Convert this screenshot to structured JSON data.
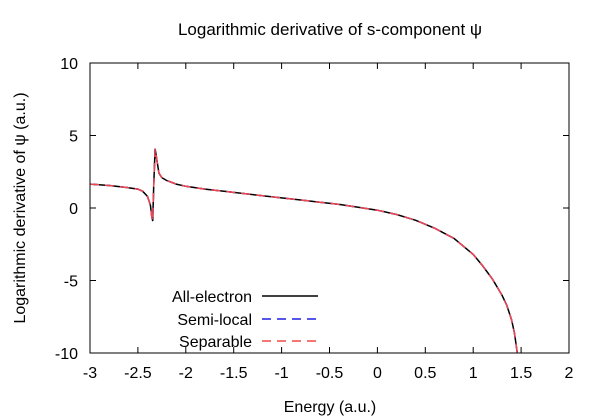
{
  "chart_data": {
    "type": "line",
    "title": "Logarithmic derivative of s-component ψ",
    "xlabel": "Energy (a.u.)",
    "ylabel": "Logarithmic derivative of ψ (a.u.)",
    "xlim": [
      -3,
      2
    ],
    "ylim": [
      -10,
      10
    ],
    "xticks": [
      -3,
      -2.5,
      -2,
      -1.5,
      -1,
      -0.5,
      0,
      0.5,
      1,
      1.5,
      2
    ],
    "xtick_labels": [
      "-3",
      "-2.5",
      "-2",
      "-1.5",
      "-1",
      "-0.5",
      "0",
      "0.5",
      "1",
      "1.5",
      "2"
    ],
    "yticks": [
      -10,
      -5,
      0,
      5,
      10
    ],
    "ytick_labels": [
      "-10",
      "-5",
      "0",
      "5",
      "10"
    ],
    "grid": false,
    "legend_position": "bottom-left",
    "series": [
      {
        "name": "All-electron",
        "color": "#000000",
        "dash": "solid",
        "x": [
          -3,
          -2.8,
          -2.6,
          -2.5,
          -2.45,
          -2.4,
          -2.37,
          -2.355,
          -2.345,
          -2.335,
          -2.32,
          -2.3,
          -2.28,
          -2.25,
          -2.2,
          -2.1,
          -2.0,
          -1.8,
          -1.6,
          -1.4,
          -1.2,
          -1.0,
          -0.8,
          -0.6,
          -0.4,
          -0.2,
          0.0,
          0.2,
          0.4,
          0.6,
          0.8,
          1.0,
          1.1,
          1.2,
          1.3,
          1.35,
          1.4,
          1.43,
          1.46
        ],
        "y": [
          1.65,
          1.55,
          1.4,
          1.3,
          1.15,
          0.8,
          0.2,
          -0.6,
          -0.9,
          1.5,
          4.1,
          3.2,
          2.4,
          2.1,
          1.9,
          1.65,
          1.5,
          1.3,
          1.15,
          1.0,
          0.85,
          0.7,
          0.55,
          0.4,
          0.25,
          0.05,
          -0.15,
          -0.45,
          -0.85,
          -1.4,
          -2.1,
          -3.2,
          -4.0,
          -4.9,
          -6.0,
          -6.7,
          -7.7,
          -8.6,
          -10.0
        ]
      },
      {
        "name": "Semi-local",
        "color": "#1f1fe0",
        "dash": "dashed",
        "x": [
          -3,
          -2.8,
          -2.6,
          -2.5,
          -2.45,
          -2.4,
          -2.37,
          -2.355,
          -2.345,
          -2.335,
          -2.32,
          -2.3,
          -2.28,
          -2.25,
          -2.2,
          -2.1,
          -2.0,
          -1.8,
          -1.6,
          -1.4,
          -1.2,
          -1.0,
          -0.8,
          -0.6,
          -0.4,
          -0.2,
          0.0,
          0.2,
          0.4,
          0.6,
          0.8,
          1.0,
          1.1,
          1.2,
          1.3,
          1.35,
          1.4,
          1.43,
          1.46
        ],
        "y": [
          1.65,
          1.55,
          1.4,
          1.3,
          1.15,
          0.8,
          0.2,
          -0.6,
          -0.9,
          1.5,
          4.1,
          3.2,
          2.4,
          2.1,
          1.9,
          1.65,
          1.5,
          1.3,
          1.15,
          1.0,
          0.85,
          0.7,
          0.55,
          0.4,
          0.25,
          0.05,
          -0.15,
          -0.45,
          -0.85,
          -1.4,
          -2.1,
          -3.2,
          -4.0,
          -4.9,
          -6.0,
          -6.7,
          -7.7,
          -8.6,
          -10.0
        ]
      },
      {
        "name": "Separable",
        "color": "#f04848",
        "dash": "dashed",
        "x": [
          -3,
          -2.8,
          -2.6,
          -2.5,
          -2.45,
          -2.4,
          -2.37,
          -2.355,
          -2.345,
          -2.335,
          -2.32,
          -2.3,
          -2.28,
          -2.25,
          -2.2,
          -2.1,
          -2.0,
          -1.8,
          -1.6,
          -1.4,
          -1.2,
          -1.0,
          -0.8,
          -0.6,
          -0.4,
          -0.2,
          0.0,
          0.2,
          0.4,
          0.6,
          0.8,
          1.0,
          1.1,
          1.2,
          1.3,
          1.35,
          1.4,
          1.43,
          1.46
        ],
        "y": [
          1.65,
          1.55,
          1.4,
          1.3,
          1.15,
          0.8,
          0.2,
          -0.6,
          -0.9,
          1.5,
          4.1,
          3.2,
          2.4,
          2.1,
          1.9,
          1.65,
          1.5,
          1.3,
          1.15,
          1.0,
          0.85,
          0.7,
          0.55,
          0.4,
          0.25,
          0.05,
          -0.15,
          -0.45,
          -0.85,
          -1.4,
          -2.1,
          -3.2,
          -4.0,
          -4.9,
          -6.0,
          -6.7,
          -7.7,
          -8.6,
          -10.0
        ]
      }
    ]
  }
}
